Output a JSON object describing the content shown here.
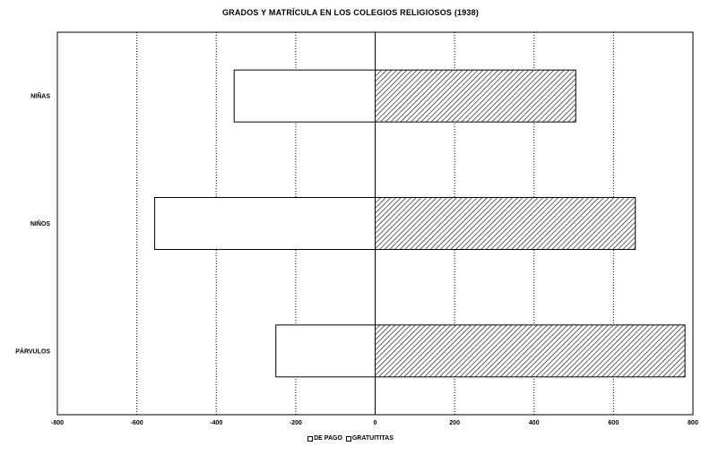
{
  "chart_data": {
    "type": "bar",
    "orientation": "horizontal",
    "title": "GRADOS Y MATRÍCULA EN LOS COLEGIOS RELIGIOSOS (1938)",
    "categories": [
      "NIÑAS",
      "NIÑOS",
      "PÁRVULOS"
    ],
    "series": [
      {
        "name": "DE PAGO",
        "values": [
          -355,
          -555,
          -250
        ],
        "fill": "#ffffff"
      },
      {
        "name": "GRATUITITAS",
        "values": [
          505,
          655,
          780
        ],
        "fill": "hatched"
      }
    ],
    "xlim": [
      -800,
      800
    ],
    "x_ticks": [
      "-800",
      "-600",
      "-400",
      "-200",
      "0",
      "200",
      "400",
      "600",
      "800"
    ],
    "grid": true,
    "legend_position": "bottom"
  }
}
